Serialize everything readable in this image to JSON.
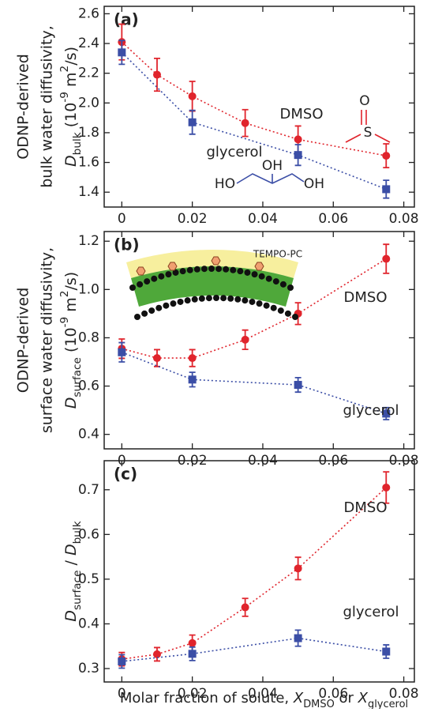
{
  "chart_data": [
    {
      "type": "line",
      "panel_label": "(a)",
      "y_label_lines": [
        "ODNP-derived",
        "bulk water diffusivity,"
      ],
      "y_label": [
        {
          "text": "D",
          "style": "italic"
        },
        {
          "text": "bulk",
          "style": "sub"
        },
        {
          "text": " (10"
        },
        {
          "text": "-9",
          "style": "sup"
        },
        {
          "text": " m"
        },
        {
          "text": "2",
          "style": "sup"
        },
        {
          "text": "/s)"
        }
      ],
      "xlim": [
        -0.005,
        0.083
      ],
      "xticks": [
        0,
        0.02,
        0.04,
        0.06,
        0.08
      ],
      "ylim": [
        1.3,
        2.65
      ],
      "yticks": [
        1.4,
        1.6,
        1.8,
        {
          "value": 2.0,
          "label": "2.0"
        },
        2.2,
        2.4,
        2.6
      ],
      "structure_labels": [
        "O",
        "S",
        "HO",
        "OH",
        "OH"
      ],
      "series": [
        {
          "name": "DMSO",
          "color": "#e0242c",
          "marker": "circle",
          "x": [
            0,
            0.01,
            0.02,
            0.035,
            0.05,
            0.075
          ],
          "values": [
            2.41,
            2.19,
            2.045,
            1.865,
            1.755,
            1.645
          ],
          "errors": [
            0.12,
            0.11,
            0.1,
            0.09,
            0.09,
            0.08
          ]
        },
        {
          "name": "glycerol",
          "color": "#3b4ea6",
          "marker": "square",
          "x": [
            0,
            0.02,
            0.05,
            0.075
          ],
          "values": [
            2.34,
            1.87,
            1.65,
            1.42
          ],
          "errors": [
            0.08,
            0.08,
            0.07,
            0.06
          ]
        }
      ]
    },
    {
      "type": "line",
      "panel_label": "(b)",
      "y_label_lines": [
        "ODNP-derived",
        "surface water diffusivity,"
      ],
      "y_label": [
        {
          "text": "D",
          "style": "italic"
        },
        {
          "text": "surface",
          "style": "sub"
        },
        {
          "text": " (10"
        },
        {
          "text": "-9",
          "style": "sup"
        },
        {
          "text": " m"
        },
        {
          "text": "2",
          "style": "sup"
        },
        {
          "text": "/s)"
        }
      ],
      "xlim": [
        -0.005,
        0.083
      ],
      "xticks": [
        0,
        0.02,
        0.04,
        0.06,
        0.08
      ],
      "ylim": [
        0.34,
        1.24
      ],
      "yticks": [
        0.4,
        0.6,
        0.8,
        {
          "value": 1.0,
          "label": "1.0"
        },
        1.2
      ],
      "structure_labels": [
        "TEMPO-PC"
      ],
      "series": [
        {
          "name": "DMSO",
          "color": "#e0242c",
          "marker": "circle",
          "x": [
            0,
            0.01,
            0.02,
            0.035,
            0.05,
            0.075
          ],
          "values": [
            0.755,
            0.716,
            0.716,
            0.792,
            0.9,
            1.127
          ],
          "errors": [
            0.04,
            0.035,
            0.035,
            0.04,
            0.045,
            0.06
          ]
        },
        {
          "name": "glycerol",
          "color": "#3b4ea6",
          "marker": "square",
          "x": [
            0,
            0.02,
            0.05,
            0.075
          ],
          "values": [
            0.74,
            0.627,
            0.605,
            0.486
          ],
          "errors": [
            0.04,
            0.03,
            0.03,
            0.025
          ]
        }
      ]
    },
    {
      "type": "line",
      "panel_label": "(c)",
      "y_label": [
        {
          "text": "D",
          "style": "italic"
        },
        {
          "text": "surface",
          "style": "sub"
        },
        {
          "text": " / "
        },
        {
          "text": "D",
          "style": "italic"
        },
        {
          "text": "bulk",
          "style": "sub"
        }
      ],
      "x_label": [
        {
          "text": "Molar fraction of solute, "
        },
        {
          "text": "X",
          "style": "italic"
        },
        {
          "text": "DMSO",
          "style": "sub"
        },
        {
          "text": " or "
        },
        {
          "text": "X",
          "style": "italic"
        },
        {
          "text": "glycerol",
          "style": "sub"
        }
      ],
      "xlim": [
        -0.005,
        0.083
      ],
      "xticks": [
        0,
        0.02,
        0.04,
        0.06,
        0.08
      ],
      "ylim": [
        0.27,
        0.765
      ],
      "yticks": [
        0.3,
        0.4,
        0.5,
        0.6,
        0.7
      ],
      "series": [
        {
          "name": "DMSO",
          "color": "#e0242c",
          "marker": "circle",
          "x": [
            0,
            0.01,
            0.02,
            0.035,
            0.05,
            0.075
          ],
          "values": [
            0.321,
            0.332,
            0.357,
            0.437,
            0.524,
            0.705
          ],
          "errors": [
            0.015,
            0.015,
            0.018,
            0.02,
            0.025,
            0.035
          ]
        },
        {
          "name": "glycerol",
          "color": "#3b4ea6",
          "marker": "square",
          "x": [
            0,
            0.02,
            0.05,
            0.075
          ],
          "values": [
            0.316,
            0.333,
            0.368,
            0.338
          ],
          "errors": [
            0.015,
            0.015,
            0.018,
            0.015
          ]
        }
      ]
    }
  ]
}
